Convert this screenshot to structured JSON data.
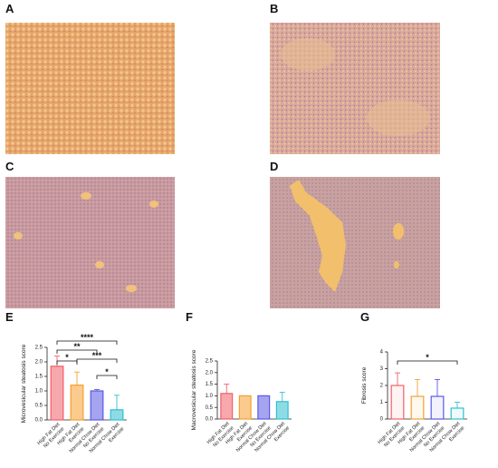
{
  "panels": [
    "A",
    "B",
    "C",
    "D"
  ],
  "chart_data": [
    {
      "type": "bar",
      "panel": "E",
      "y_label": "Microvesicular steatosis score",
      "categories": [
        [
          "High Fat Diet",
          "No Exercise"
        ],
        [
          "High Fat Diet",
          "Exercise"
        ],
        [
          "Normal Chow Diet",
          "No Exercise"
        ],
        [
          "Normal Chow Diet",
          "Exercise"
        ]
      ],
      "values": [
        1.85,
        1.2,
        1.0,
        0.35
      ],
      "errors": [
        0.35,
        0.45,
        0.05,
        0.5
      ],
      "colors": [
        "#f0606a",
        "#f5a030",
        "#5a5ae6",
        "#30c0d0"
      ],
      "ylim": [
        0,
        2.5
      ],
      "yticks": [
        {
          "value": 0,
          "label": "0.0"
        },
        0.5,
        {
          "value": 1,
          "label": "1.0"
        },
        1.5,
        {
          "value": 2,
          "label": "2.0"
        },
        2.5
      ],
      "significance": [
        "****",
        "**",
        "*",
        "***",
        "*"
      ]
    },
    {
      "type": "bar",
      "panel": "F",
      "y_label": "Macrovesicular steatosis score",
      "categories": [
        [
          "High Fat Diet",
          "No Exercise"
        ],
        [
          "High Fat Diet",
          "Exercise"
        ],
        [
          "Normal Chow Diet",
          "No Exercise"
        ],
        [
          "Normal Chow Diet",
          "Exercise"
        ]
      ],
      "values": [
        1.1,
        1.0,
        1.0,
        0.75
      ],
      "errors": [
        0.4,
        0.0,
        0.0,
        0.4
      ],
      "colors": [
        "#f0606a",
        "#f5a030",
        "#5a5ae6",
        "#30c0d0"
      ],
      "ylim": [
        0,
        2.5
      ],
      "yticks": [
        {
          "value": 0,
          "label": "0.0"
        },
        0.5,
        {
          "value": 1,
          "label": "1.0"
        },
        1.5,
        {
          "value": 2,
          "label": "2.0"
        },
        2.5
      ],
      "significance": []
    },
    {
      "type": "bar",
      "panel": "G",
      "y_label": "Fibrosis score",
      "categories": [
        [
          "High Fat Diet",
          "No Exercise"
        ],
        [
          "High Fat Diet",
          "Exercise"
        ],
        [
          "Normal Chow Diet",
          "No Exercise"
        ],
        [
          "Normal Chow Diet",
          "Exercise"
        ]
      ],
      "values": [
        2.0,
        1.35,
        1.35,
        0.65
      ],
      "errors": [
        0.75,
        1.0,
        1.0,
        0.35
      ],
      "colors": [
        "#f0606a",
        "#f5a030",
        "#5a5ae6",
        "#30c0d0"
      ],
      "ylim": [
        0,
        4
      ],
      "yticks": [
        0,
        1,
        2,
        3,
        4
      ],
      "significance": [
        "*"
      ]
    }
  ]
}
